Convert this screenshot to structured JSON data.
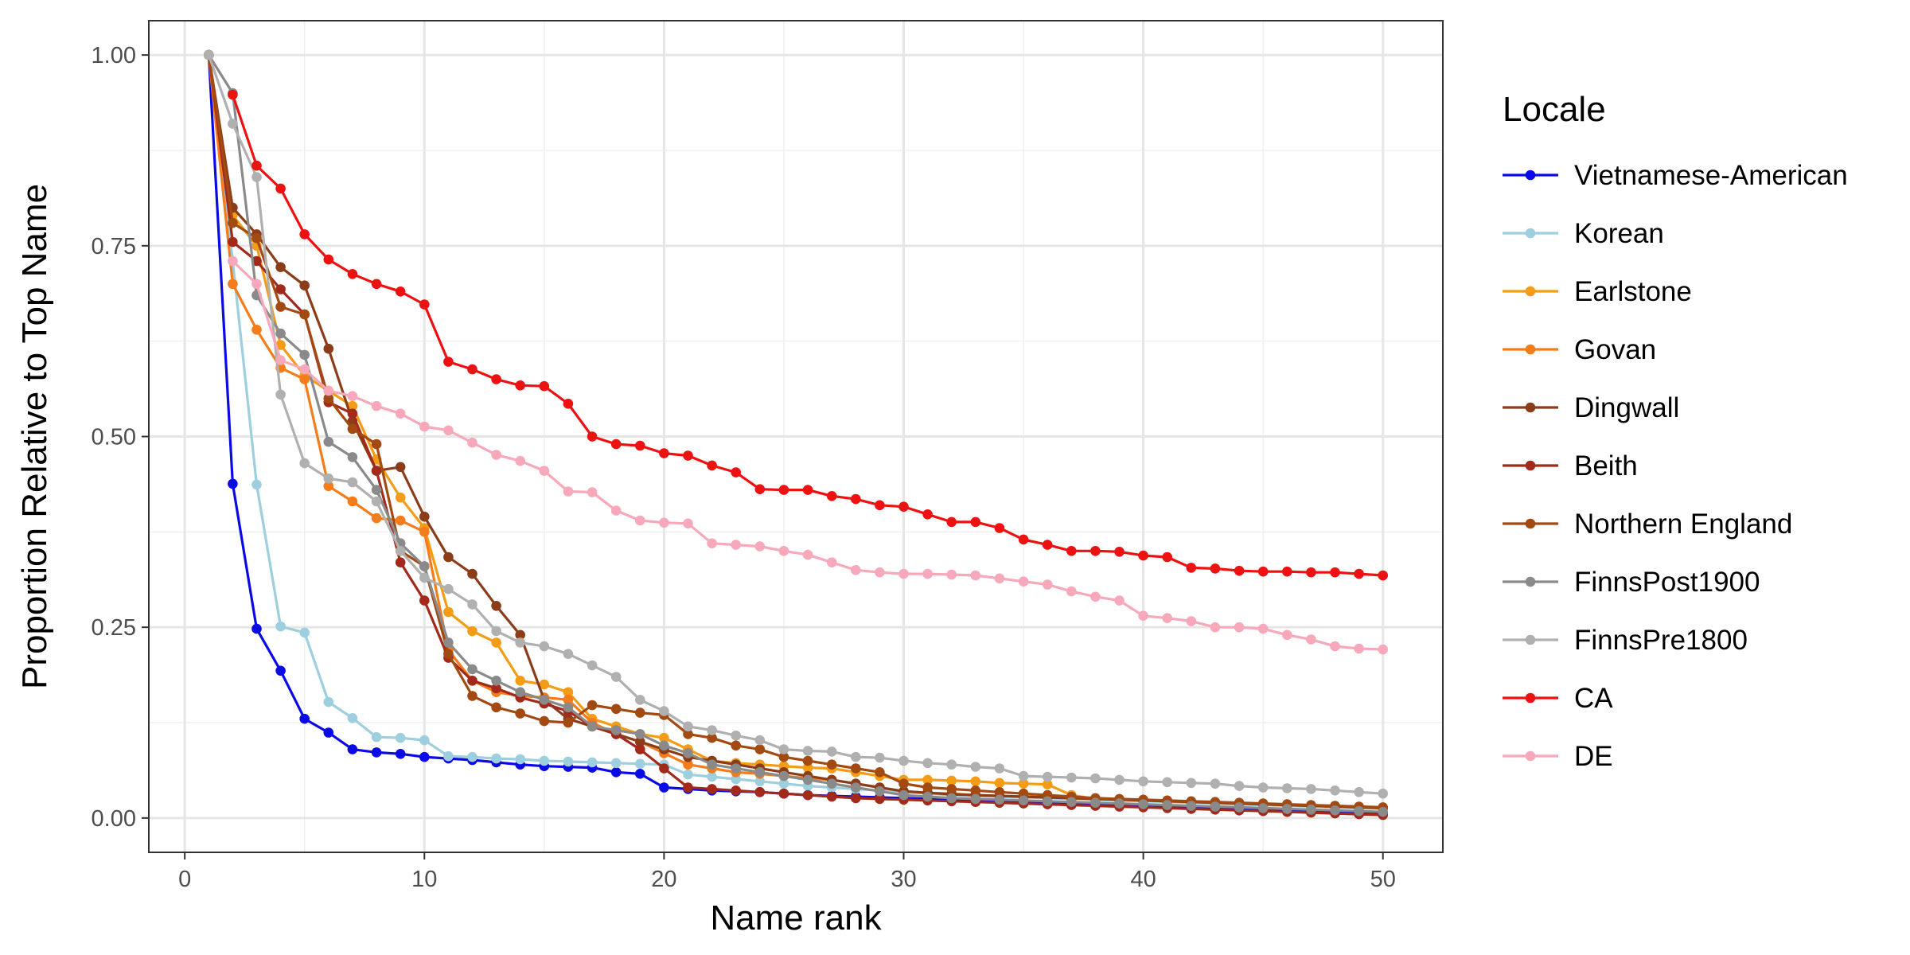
{
  "chart_data": {
    "type": "line",
    "title": "",
    "xlabel": "Name rank",
    "ylabel": "Proportion Relative to Top Name",
    "xlim": [
      -1.5,
      52.5
    ],
    "ylim": [
      -0.045,
      1.045
    ],
    "x_ticks": [
      0,
      10,
      20,
      30,
      40,
      50
    ],
    "x_tick_labels": [
      "0",
      "10",
      "20",
      "30",
      "40",
      "50"
    ],
    "y_ticks": [
      0,
      0.25,
      0.5,
      0.75,
      1.0
    ],
    "y_tick_labels": [
      "0.00",
      "0.25",
      "0.50",
      "0.75",
      "1.00"
    ],
    "grid": true,
    "legend_title": "Locale",
    "legend_position": "right",
    "series": [
      {
        "name": "Vietnamese-American",
        "color": "#0a0ae6",
        "values": [
          1.0,
          0.438,
          0.248,
          0.193,
          0.13,
          0.112,
          0.09,
          0.086,
          0.084,
          0.08,
          0.078,
          0.076,
          0.073,
          0.07,
          0.068,
          0.067,
          0.066,
          0.06,
          0.058,
          0.04,
          0.038,
          0.036,
          0.035,
          0.034,
          0.032,
          0.03,
          0.029,
          0.028,
          0.027,
          0.026,
          0.025,
          0.024,
          0.023,
          0.022,
          0.021,
          0.02,
          0.019,
          0.018,
          0.017,
          0.016,
          0.015,
          0.014,
          0.013,
          0.012,
          0.011,
          0.01,
          0.009,
          0.008,
          0.007,
          0.006
        ]
      },
      {
        "name": "Korean",
        "color": "#9ecfdf",
        "values": [
          1.0,
          0.73,
          0.437,
          0.251,
          0.243,
          0.152,
          0.131,
          0.106,
          0.105,
          0.102,
          0.081,
          0.08,
          0.078,
          0.077,
          0.075,
          0.074,
          0.073,
          0.072,
          0.071,
          0.07,
          0.057,
          0.054,
          0.051,
          0.048,
          0.045,
          0.042,
          0.04,
          0.038,
          0.036,
          0.034,
          0.032,
          0.03,
          0.029,
          0.028,
          0.027,
          0.026,
          0.025,
          0.024,
          0.023,
          0.022,
          0.021,
          0.02,
          0.019,
          0.018,
          0.017,
          0.016,
          0.015,
          0.014,
          0.013,
          0.012
        ]
      },
      {
        "name": "Earlstone",
        "color": "#f59c17",
        "values": [
          1.0,
          0.79,
          0.75,
          0.62,
          0.58,
          0.56,
          0.54,
          0.47,
          0.42,
          0.38,
          0.27,
          0.245,
          0.23,
          0.18,
          0.175,
          0.165,
          0.13,
          0.12,
          0.11,
          0.105,
          0.09,
          0.075,
          0.072,
          0.07,
          0.068,
          0.066,
          0.065,
          0.06,
          0.055,
          0.05,
          0.05,
          0.049,
          0.048,
          0.046,
          0.045,
          0.044,
          0.03,
          0.025,
          0.024,
          0.023,
          0.022,
          0.021,
          0.02,
          0.019,
          0.018,
          0.017,
          0.016,
          0.015,
          0.014,
          0.013
        ]
      },
      {
        "name": "Govan",
        "color": "#f57c1a",
        "values": [
          1.0,
          0.7,
          0.64,
          0.59,
          0.575,
          0.435,
          0.415,
          0.393,
          0.39,
          0.375,
          0.22,
          0.18,
          0.165,
          0.16,
          0.158,
          0.155,
          0.125,
          0.11,
          0.1,
          0.085,
          0.07,
          0.065,
          0.06,
          0.058,
          0.055,
          0.052,
          0.05,
          0.045,
          0.04,
          0.035,
          0.033,
          0.032,
          0.03,
          0.029,
          0.028,
          0.027,
          0.026,
          0.025,
          0.024,
          0.023,
          0.022,
          0.021,
          0.02,
          0.019,
          0.018,
          0.017,
          0.016,
          0.015,
          0.014,
          0.013
        ]
      },
      {
        "name": "Dingwall",
        "color": "#8b3d1a",
        "values": [
          1.0,
          0.8,
          0.765,
          0.722,
          0.698,
          0.615,
          0.52,
          0.455,
          0.46,
          0.395,
          0.342,
          0.32,
          0.278,
          0.24,
          0.155,
          0.13,
          0.12,
          0.11,
          0.1,
          0.09,
          0.08,
          0.075,
          0.07,
          0.065,
          0.06,
          0.055,
          0.05,
          0.045,
          0.04,
          0.035,
          0.033,
          0.031,
          0.03,
          0.029,
          0.028,
          0.027,
          0.026,
          0.025,
          0.024,
          0.023,
          0.022,
          0.021,
          0.02,
          0.019,
          0.018,
          0.017,
          0.016,
          0.015,
          0.014,
          0.013
        ]
      },
      {
        "name": "Beith",
        "color": "#a3291a",
        "values": [
          1.0,
          0.755,
          0.73,
          0.693,
          0.66,
          0.545,
          0.53,
          0.455,
          0.335,
          0.285,
          0.21,
          0.18,
          0.17,
          0.158,
          0.15,
          0.14,
          0.12,
          0.11,
          0.09,
          0.065,
          0.04,
          0.038,
          0.036,
          0.034,
          0.032,
          0.03,
          0.028,
          0.026,
          0.025,
          0.024,
          0.023,
          0.022,
          0.021,
          0.02,
          0.019,
          0.018,
          0.017,
          0.016,
          0.015,
          0.014,
          0.013,
          0.012,
          0.011,
          0.01,
          0.009,
          0.008,
          0.007,
          0.006,
          0.005,
          0.004
        ]
      },
      {
        "name": "Northern England",
        "color": "#a34a12",
        "values": [
          1.0,
          0.78,
          0.76,
          0.67,
          0.66,
          0.55,
          0.51,
          0.49,
          0.35,
          0.33,
          0.215,
          0.16,
          0.145,
          0.137,
          0.127,
          0.125,
          0.148,
          0.143,
          0.138,
          0.135,
          0.11,
          0.105,
          0.095,
          0.09,
          0.08,
          0.075,
          0.07,
          0.065,
          0.06,
          0.045,
          0.04,
          0.038,
          0.036,
          0.034,
          0.032,
          0.03,
          0.028,
          0.026,
          0.025,
          0.024,
          0.023,
          0.022,
          0.021,
          0.02,
          0.019,
          0.018,
          0.017,
          0.016,
          0.015,
          0.014
        ]
      },
      {
        "name": "FinnsPost1900",
        "color": "#8a8a8a",
        "values": [
          1.0,
          0.95,
          0.685,
          0.635,
          0.607,
          0.493,
          0.473,
          0.43,
          0.36,
          0.33,
          0.23,
          0.195,
          0.18,
          0.165,
          0.155,
          0.145,
          0.12,
          0.115,
          0.11,
          0.095,
          0.085,
          0.07,
          0.065,
          0.06,
          0.055,
          0.05,
          0.045,
          0.04,
          0.035,
          0.03,
          0.028,
          0.026,
          0.025,
          0.024,
          0.023,
          0.022,
          0.021,
          0.02,
          0.019,
          0.018,
          0.017,
          0.016,
          0.015,
          0.014,
          0.013,
          0.012,
          0.011,
          0.01,
          0.009,
          0.008
        ]
      },
      {
        "name": "FinnsPre1800",
        "color": "#b0b0b0",
        "values": [
          1.0,
          0.91,
          0.84,
          0.555,
          0.465,
          0.445,
          0.44,
          0.415,
          0.35,
          0.315,
          0.3,
          0.28,
          0.245,
          0.23,
          0.225,
          0.215,
          0.2,
          0.185,
          0.155,
          0.14,
          0.12,
          0.115,
          0.108,
          0.102,
          0.09,
          0.088,
          0.087,
          0.08,
          0.079,
          0.075,
          0.072,
          0.07,
          0.067,
          0.065,
          0.055,
          0.054,
          0.053,
          0.052,
          0.05,
          0.048,
          0.047,
          0.046,
          0.045,
          0.042,
          0.04,
          0.039,
          0.038,
          0.036,
          0.034,
          0.032
        ]
      },
      {
        "name": "CA",
        "color": "#ee1111",
        "values": [
          null,
          0.948,
          0.855,
          0.825,
          0.765,
          0.732,
          0.713,
          0.7,
          0.69,
          0.673,
          0.598,
          0.588,
          0.575,
          0.567,
          0.566,
          0.543,
          0.5,
          0.49,
          0.488,
          0.478,
          0.475,
          0.462,
          0.453,
          0.431,
          0.43,
          0.43,
          0.422,
          0.418,
          0.41,
          0.408,
          0.398,
          0.388,
          0.388,
          0.38,
          0.365,
          0.358,
          0.35,
          0.35,
          0.349,
          0.344,
          0.342,
          0.328,
          0.327,
          0.324,
          0.323,
          0.323,
          0.322,
          0.322,
          0.32,
          0.318
        ]
      },
      {
        "name": "DE",
        "color": "#f7a8bb",
        "values": [
          null,
          0.73,
          0.7,
          0.6,
          0.588,
          0.56,
          0.553,
          0.54,
          0.53,
          0.513,
          0.508,
          0.492,
          0.476,
          0.468,
          0.455,
          0.428,
          0.427,
          0.403,
          0.39,
          0.387,
          0.386,
          0.36,
          0.358,
          0.356,
          0.35,
          0.345,
          0.335,
          0.325,
          0.322,
          0.32,
          0.32,
          0.319,
          0.318,
          0.314,
          0.31,
          0.306,
          0.297,
          0.29,
          0.285,
          0.265,
          0.262,
          0.258,
          0.25,
          0.25,
          0.248,
          0.24,
          0.234,
          0.225,
          0.222,
          0.221
        ]
      }
    ]
  }
}
